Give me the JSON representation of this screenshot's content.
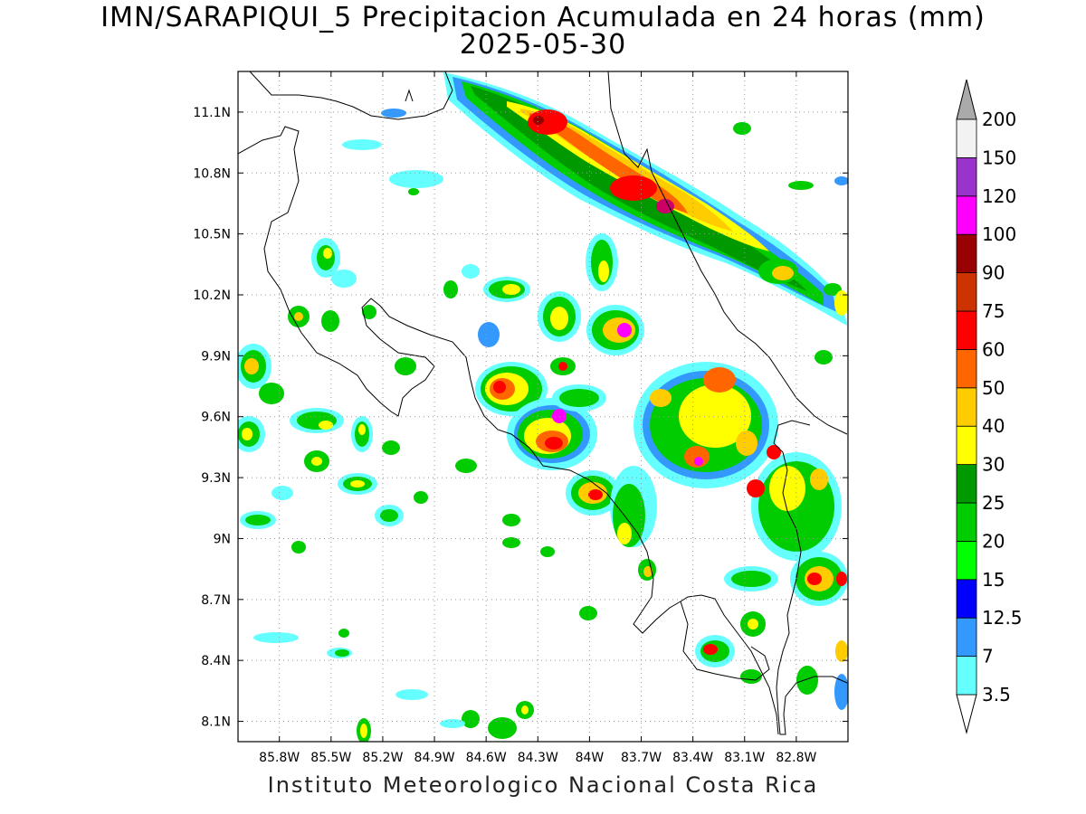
{
  "title_line1": "IMN/SARAPIQUI_5 Precipitacion Acumulada en 24 horas (mm)",
  "title_line2": "2025-05-30",
  "footer": "Instituto Meteorologico Nacional Costa Rica",
  "map": {
    "lon_range": [
      -86.04,
      -82.5
    ],
    "lat_range": [
      8.0,
      11.3
    ],
    "x_ticks": [
      "85.8W",
      "85.5W",
      "85.2W",
      "84.9W",
      "84.6W",
      "84.3W",
      "84W",
      "83.7W",
      "83.4W",
      "83.1W",
      "82.8W"
    ],
    "y_ticks": [
      "11.1N",
      "10.8N",
      "10.5N",
      "10.2N",
      "9.9N",
      "9.6N",
      "9.3N",
      "9N",
      "8.7N",
      "8.4N",
      "8.1N"
    ],
    "grid": "dotted"
  },
  "colorbar": {
    "labels": [
      "3.5",
      "7",
      "12.5",
      "15",
      "20",
      "25",
      "30",
      "40",
      "50",
      "60",
      "75",
      "90",
      "100",
      "120",
      "150",
      "200"
    ],
    "colors": [
      "#66ffff",
      "#3399ff",
      "#0000ff",
      "#00ff00",
      "#00cc00",
      "#009900",
      "#ffff00",
      "#ffcc00",
      "#ff6600",
      "#ff0000",
      "#cc3300",
      "#990000",
      "#ff00ff",
      "#9933cc",
      "#f2f2f2"
    ],
    "top_arrow_color": "#aaaaaa",
    "bottom_arrow_color": "#ffffff"
  }
}
